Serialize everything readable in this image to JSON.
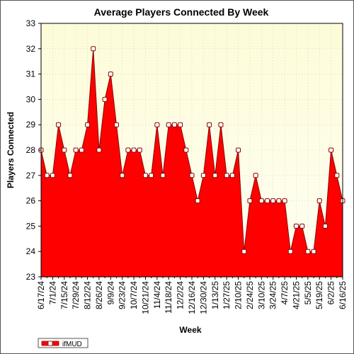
{
  "chart_data": {
    "type": "area",
    "title": "Average Players Connected By Week",
    "xlabel": "Week",
    "ylabel": "Players Connected",
    "ylim": [
      23,
      33
    ],
    "yticks": [
      23,
      24,
      25,
      26,
      27,
      28,
      29,
      30,
      31,
      32,
      33
    ],
    "grid": true,
    "legend_position": "bottom-left",
    "colors": {
      "fill": "#ff0000",
      "line": "#8b0000",
      "marker_fill": "#ffffff",
      "plot_bg_top": "#fdfde0",
      "plot_bg_bottom": "#fffff0",
      "grid": "#c8c8b8"
    },
    "tick_labels": [
      "6/17/24",
      "7/1/24",
      "7/15/24",
      "7/29/24",
      "8/12/24",
      "8/26/24",
      "9/9/24",
      "9/23/24",
      "10/7/24",
      "10/21/24",
      "11/4/24",
      "11/18/24",
      "12/2/24",
      "12/16/24",
      "12/30/24",
      "1/13/25",
      "1/27/25",
      "2/10/25",
      "2/24/25",
      "3/10/25",
      "3/24/25",
      "4/7/25",
      "4/21/25",
      "5/5/25",
      "5/19/25",
      "6/2/25",
      "6/16/25"
    ],
    "series": [
      {
        "name": "ifMUD",
        "values": [
          28,
          27,
          27,
          29,
          28,
          27,
          28,
          28,
          29,
          32,
          28,
          30,
          31,
          29,
          27,
          28,
          28,
          28,
          27,
          27,
          29,
          27,
          29,
          29,
          29,
          28,
          27,
          26,
          27,
          29,
          27,
          29,
          27,
          27,
          28,
          24,
          26,
          27,
          26,
          26,
          26,
          26,
          26,
          24,
          25,
          25,
          24,
          24,
          26,
          25,
          28,
          27,
          26
        ]
      }
    ]
  }
}
